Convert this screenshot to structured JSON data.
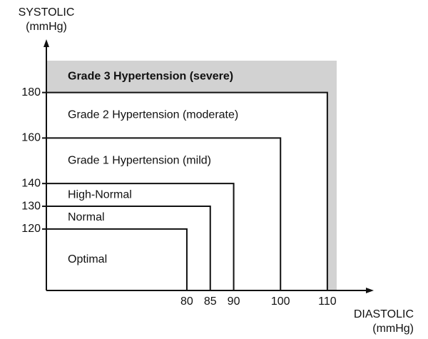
{
  "chart_data": {
    "type": "nested-region",
    "x_label": [
      "DIASTOLIC",
      "(mmHg)"
    ],
    "y_label": [
      "SYSTOLIC",
      "(mmHg)"
    ],
    "regions": [
      {
        "name": "Optimal",
        "diastolic": 80,
        "systolic": 120
      },
      {
        "name": "Normal",
        "diastolic": 85,
        "systolic": 130
      },
      {
        "name": "High-Normal",
        "diastolic": 90,
        "systolic": 140
      },
      {
        "name": "Grade 1 Hypertension (mild)",
        "diastolic": 100,
        "systolic": 160
      },
      {
        "name": "Grade 2 Hypertension (moderate)",
        "diastolic": 110,
        "systolic": 180
      },
      {
        "name": "Grade 3 Hypertension (severe)",
        "diastolic": null,
        "systolic": null
      }
    ],
    "xlim": [
      50,
      112
    ],
    "ylim": [
      93,
      194
    ],
    "xticks": [
      80,
      85,
      90,
      100,
      110
    ],
    "yticks": [
      120,
      130,
      140,
      160,
      180
    ],
    "color": "#d2d2d2"
  }
}
